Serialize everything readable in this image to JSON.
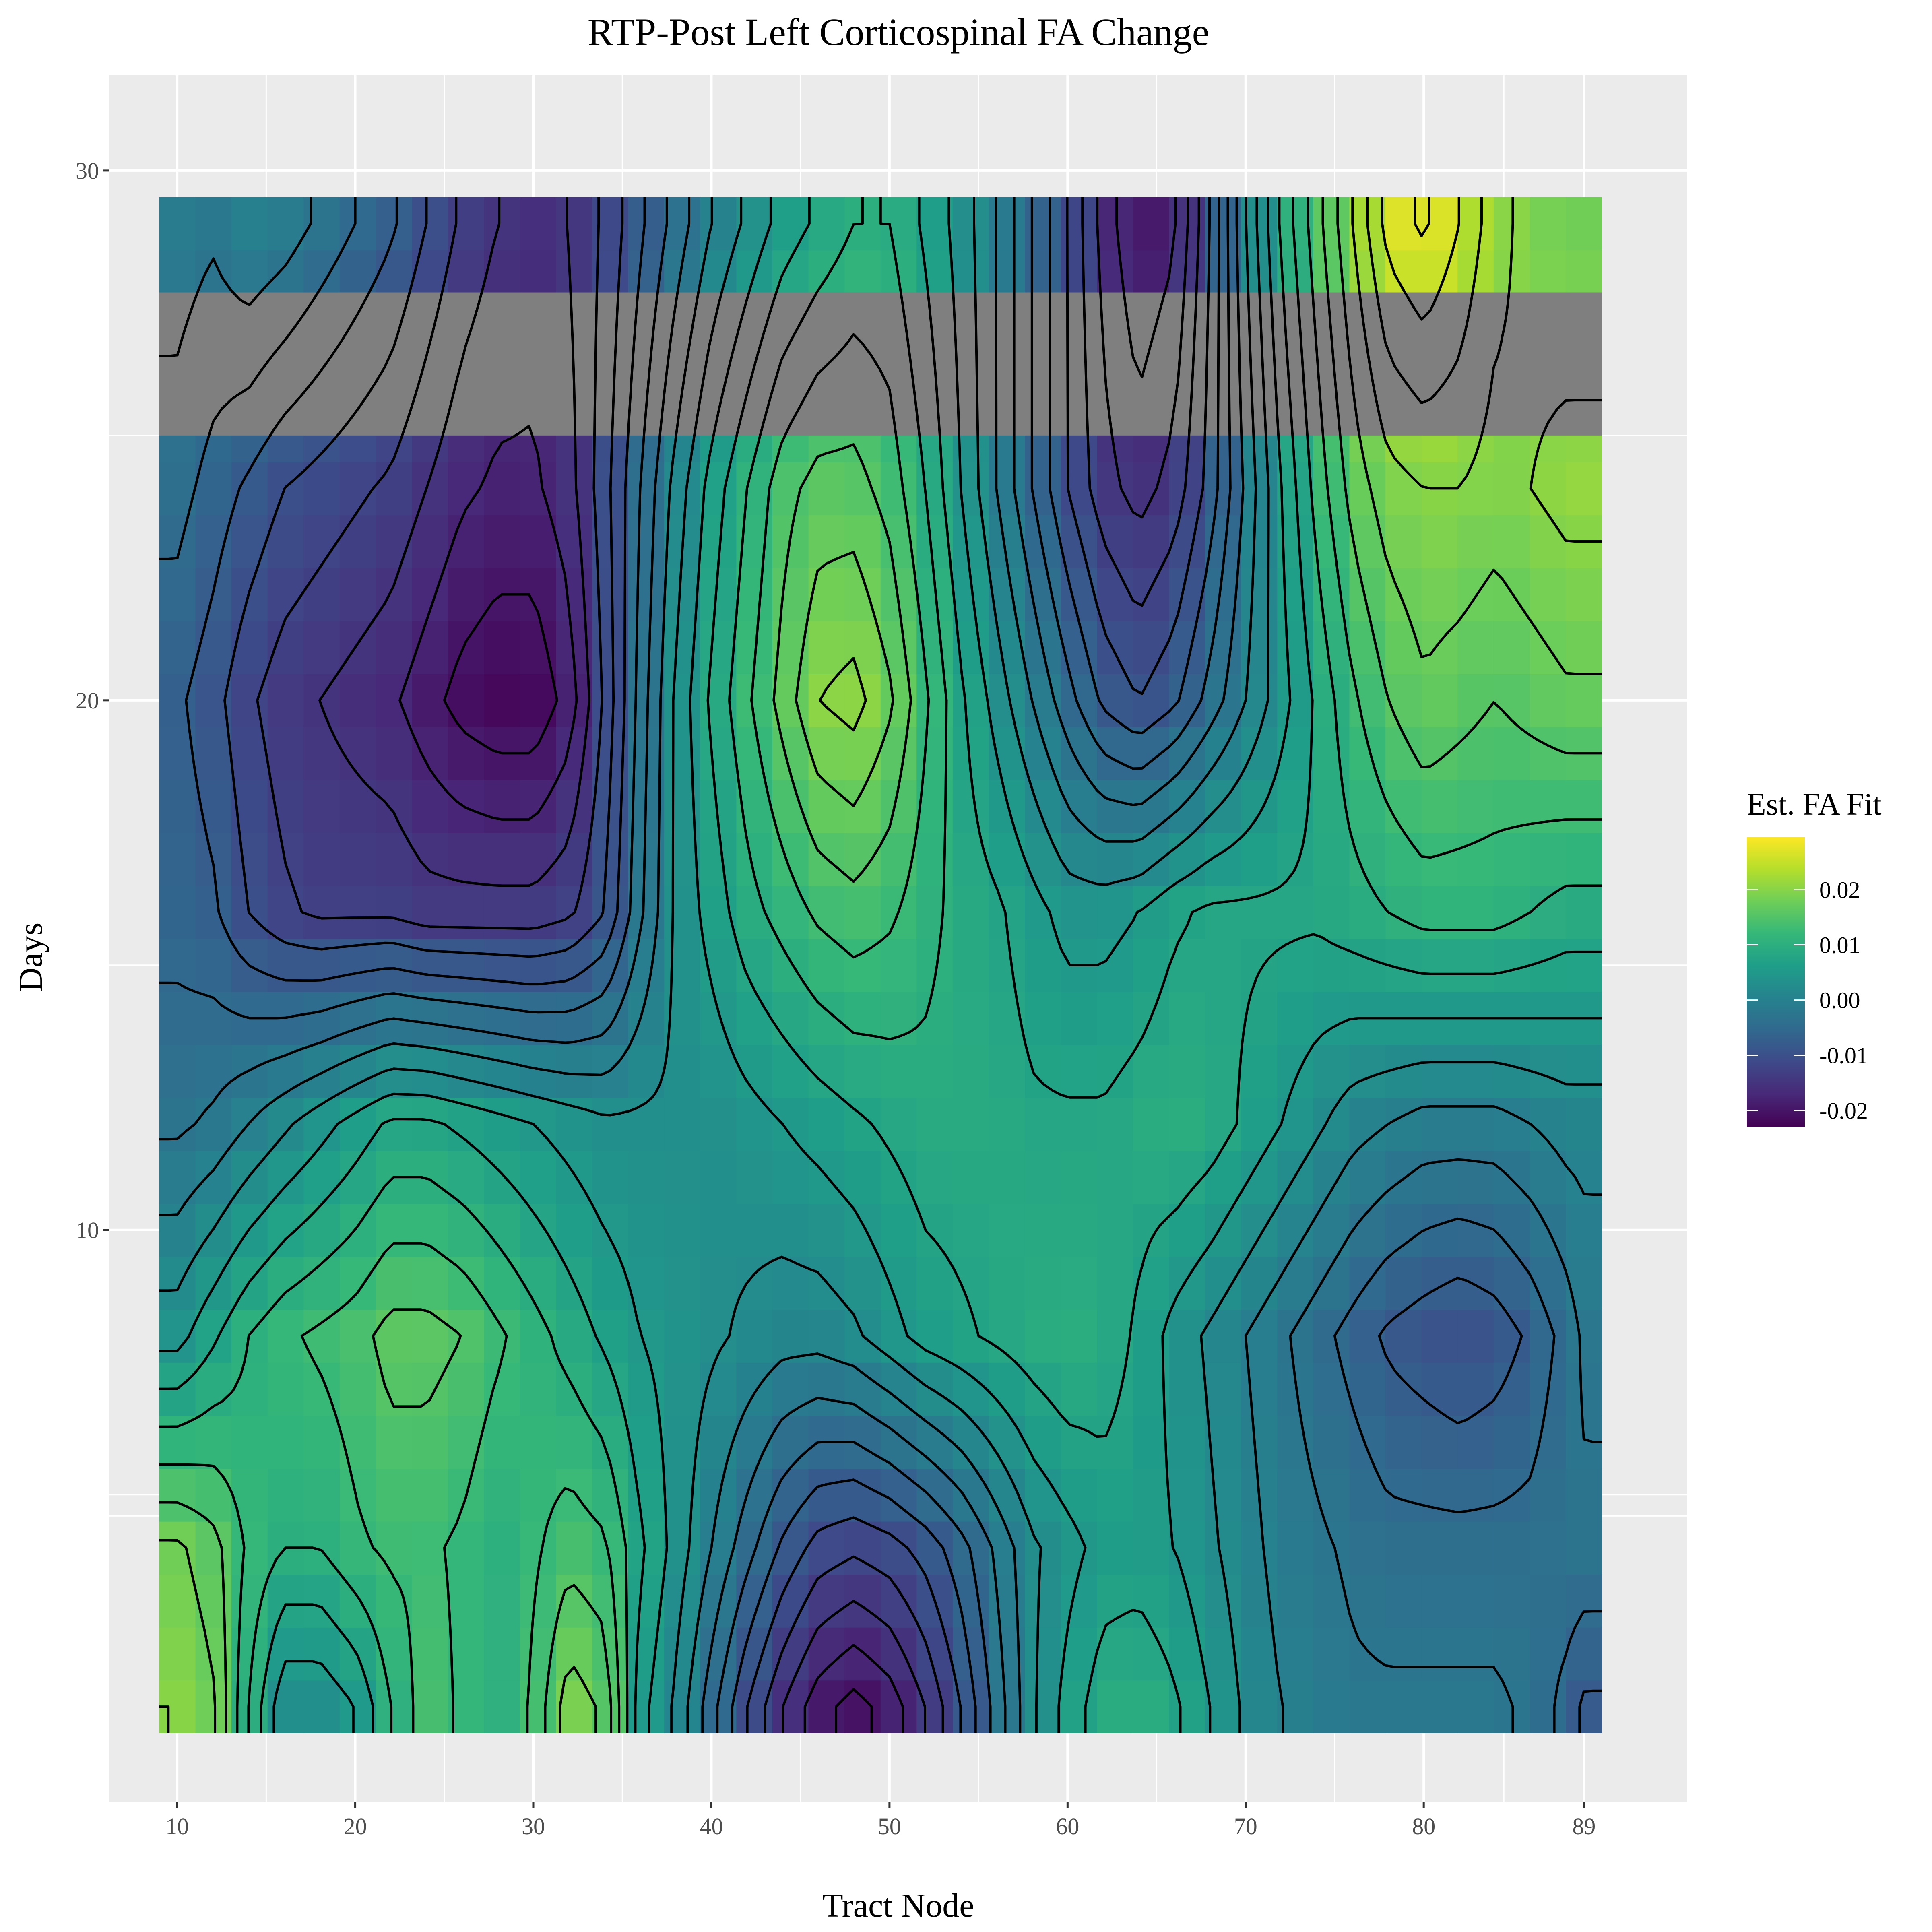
{
  "chart_data": {
    "type": "heatmap",
    "title": "RTP-Post Left Corticospinal FA Change",
    "xlabel": "Tract Node",
    "ylabel": "Days",
    "x_ticks": [
      10,
      20,
      30,
      40,
      50,
      60,
      70,
      80,
      89
    ],
    "y_ticks": [
      10,
      20,
      30
    ],
    "xlim": [
      6.2,
      94.8
    ],
    "ylim": [
      -0.8,
      31.8
    ],
    "missing_band_days": [
      25,
      27.7
    ],
    "missing_color": "#7f7f7f",
    "legend": {
      "title": "Est. FA Fit",
      "position": "right",
      "ticks": [
        0.02,
        0.01,
        0.0,
        -0.01,
        -0.02
      ],
      "tick_labels": [
        "0.02",
        "0.01",
        "0.00",
        "-0.01",
        "-0.02"
      ],
      "range": [
        -0.023,
        0.0295
      ],
      "colors": [
        "#440154",
        "#482878",
        "#3e4989",
        "#31688e",
        "#26828e",
        "#1f9e89",
        "#35b779",
        "#6ece58",
        "#b5de2b",
        "#fde725"
      ]
    },
    "grid": true,
    "panel_background": "#ebebeb",
    "x_nodes": [
      10,
      12,
      14,
      16,
      18,
      20,
      22,
      24,
      26,
      28,
      30,
      32,
      34,
      36,
      38,
      40,
      42,
      44,
      46,
      48,
      50,
      52,
      54,
      56,
      58,
      60,
      62,
      64,
      66,
      68,
      70,
      72,
      74,
      76,
      78,
      80,
      82,
      84,
      86,
      88,
      89
    ],
    "y_days": [
      1,
      4,
      8,
      12,
      16,
      20,
      24,
      29
    ],
    "z": [
      [
        0.02,
        0.018,
        0.01,
        0.003,
        0.003,
        0.005,
        0.01,
        0.014,
        0.012,
        0.01,
        0.013,
        0.019,
        0.017,
        0.006,
        0.002,
        -0.004,
        -0.01,
        -0.015,
        -0.019,
        -0.021,
        -0.019,
        -0.015,
        -0.01,
        -0.004,
        0.002,
        0.006,
        0.009,
        0.01,
        0.008,
        0.005,
        0.002,
        0.0,
        -0.001,
        -0.002,
        -0.002,
        -0.002,
        -0.002,
        -0.002,
        -0.003,
        -0.006,
        -0.008
      ],
      [
        0.018,
        0.016,
        0.012,
        0.01,
        0.01,
        0.012,
        0.013,
        0.013,
        0.012,
        0.01,
        0.012,
        0.014,
        0.013,
        0.008,
        0.004,
        0.0,
        -0.004,
        -0.008,
        -0.011,
        -0.012,
        -0.011,
        -0.009,
        -0.006,
        -0.002,
        0.002,
        0.004,
        0.006,
        0.006,
        0.005,
        0.003,
        0.001,
        -0.001,
        -0.002,
        -0.003,
        -0.004,
        -0.004,
        -0.004,
        -0.004,
        -0.004,
        -0.003,
        -0.003
      ],
      [
        0.004,
        0.007,
        0.01,
        0.012,
        0.013,
        0.014,
        0.016,
        0.016,
        0.015,
        0.013,
        0.011,
        0.009,
        0.007,
        0.005,
        0.004,
        0.003,
        0.002,
        0.001,
        0.001,
        0.002,
        0.004,
        0.006,
        0.007,
        0.008,
        0.009,
        0.01,
        0.009,
        0.007,
        0.004,
        0.002,
        0.0,
        -0.002,
        -0.004,
        -0.006,
        -0.008,
        -0.009,
        -0.01,
        -0.009,
        -0.007,
        -0.004,
        -0.002
      ],
      [
        -0.003,
        -0.002,
        0.0,
        0.002,
        0.004,
        0.006,
        0.008,
        0.008,
        0.007,
        0.006,
        0.005,
        0.004,
        0.003,
        0.003,
        0.003,
        0.003,
        0.004,
        0.005,
        0.006,
        0.007,
        0.008,
        0.009,
        0.009,
        0.009,
        0.008,
        0.008,
        0.008,
        0.009,
        0.01,
        0.009,
        0.007,
        0.005,
        0.003,
        0.001,
        0.0,
        -0.001,
        -0.001,
        -0.001,
        0.0,
        0.001,
        0.001
      ],
      [
        -0.006,
        -0.007,
        -0.01,
        -0.012,
        -0.013,
        -0.013,
        -0.013,
        -0.014,
        -0.014,
        -0.014,
        -0.014,
        -0.013,
        -0.01,
        -0.003,
        0.003,
        0.006,
        0.009,
        0.011,
        0.013,
        0.014,
        0.013,
        0.011,
        0.009,
        0.008,
        0.006,
        0.004,
        0.004,
        0.005,
        0.007,
        0.008,
        0.008,
        0.008,
        0.008,
        0.009,
        0.01,
        0.011,
        0.011,
        0.011,
        0.01,
        0.009,
        0.009
      ],
      [
        -0.007,
        -0.009,
        -0.012,
        -0.014,
        -0.015,
        -0.016,
        -0.017,
        -0.019,
        -0.021,
        -0.022,
        -0.022,
        -0.019,
        -0.012,
        -0.004,
        0.003,
        0.008,
        0.012,
        0.016,
        0.02,
        0.021,
        0.018,
        0.013,
        0.008,
        0.004,
        0.0,
        -0.004,
        -0.008,
        -0.01,
        -0.008,
        -0.004,
        0.0,
        0.004,
        0.008,
        0.012,
        0.015,
        0.017,
        0.016,
        0.015,
        0.016,
        0.017,
        0.017
      ],
      [
        -0.004,
        -0.006,
        -0.008,
        -0.01,
        -0.011,
        -0.012,
        -0.013,
        -0.015,
        -0.017,
        -0.018,
        -0.018,
        -0.016,
        -0.011,
        -0.005,
        0.001,
        0.006,
        0.01,
        0.014,
        0.016,
        0.016,
        0.014,
        0.01,
        0.005,
        0.0,
        -0.005,
        -0.01,
        -0.014,
        -0.016,
        -0.014,
        -0.009,
        -0.002,
        0.005,
        0.011,
        0.016,
        0.019,
        0.02,
        0.02,
        0.019,
        0.02,
        0.021,
        0.021
      ],
      [
        -0.001,
        -0.002,
        0.0,
        -0.001,
        -0.003,
        -0.005,
        -0.007,
        -0.01,
        -0.013,
        -0.015,
        -0.016,
        -0.015,
        -0.012,
        -0.008,
        -0.004,
        0.0,
        0.003,
        0.006,
        0.008,
        0.01,
        0.01,
        0.007,
        0.004,
        0.0,
        -0.005,
        -0.01,
        -0.016,
        -0.02,
        -0.018,
        -0.01,
        0.0,
        0.008,
        0.014,
        0.02,
        0.026,
        0.028,
        0.025,
        0.021,
        0.019,
        0.018,
        0.018
      ]
    ]
  }
}
